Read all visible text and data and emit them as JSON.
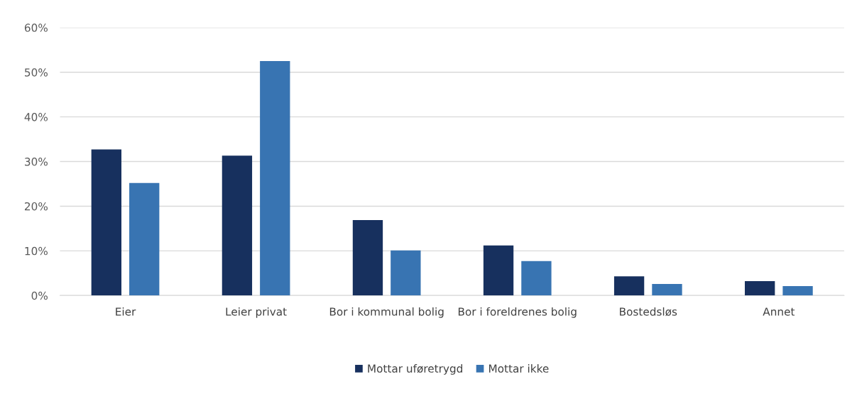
{
  "chart_data": {
    "type": "bar",
    "categories": [
      "Eier",
      "Leier privat",
      "Bor i kommunal bolig",
      "Bor i foreldrenes bolig",
      "Bostedsløs",
      "Annet"
    ],
    "series": [
      {
        "name": "Mottar uføretrygd",
        "color": "#17305e",
        "values": [
          32.7,
          31.3,
          16.9,
          11.2,
          4.3,
          3.2
        ]
      },
      {
        "name": "Mottar ikke",
        "color": "#3874b2",
        "values": [
          25.2,
          52.5,
          10.1,
          7.7,
          2.6,
          2.1
        ]
      }
    ],
    "ylim": [
      0,
      60
    ],
    "yticks": [
      {
        "value": 0,
        "label": "0%"
      },
      {
        "value": 10,
        "label": "10%"
      },
      {
        "value": 20,
        "label": "20%"
      },
      {
        "value": 30,
        "label": "30%"
      },
      {
        "value": 40,
        "label": "40%"
      },
      {
        "value": 50,
        "label": "50%"
      },
      {
        "value": 60,
        "label": "60%"
      }
    ],
    "grid": "y",
    "legend": "bottom"
  }
}
